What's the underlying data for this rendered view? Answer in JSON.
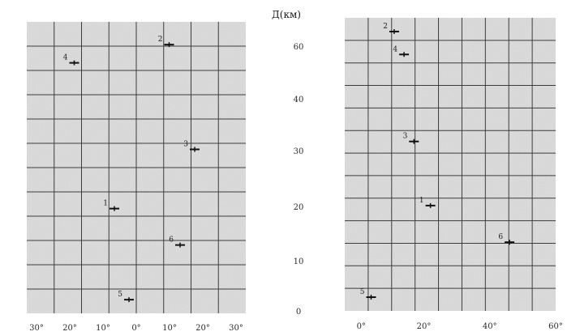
{
  "chart_data": [
    {
      "type": "scatter",
      "title": "",
      "xlabel": "",
      "ylabel": "",
      "x_tick_labels": [
        "30°",
        "20°",
        "10°",
        "0°",
        "10°",
        "20°",
        "30°"
      ],
      "grid": true,
      "points": [
        {
          "label": "2",
          "x": 9,
          "y": 59
        },
        {
          "label": "4",
          "x": -17,
          "y": 55
        },
        {
          "label": "3",
          "x": 16,
          "y": 36
        },
        {
          "label": "1",
          "x": -6,
          "y": 23
        },
        {
          "label": "6",
          "x": 12,
          "y": 15
        },
        {
          "label": "5",
          "x": -2,
          "y": 3
        }
      ]
    },
    {
      "type": "scatter",
      "title": "",
      "xlabel": "",
      "ylabel": "Д(км)",
      "y_tick_labels": [
        "0",
        "10",
        "20",
        "30",
        "40",
        "60"
      ],
      "x_tick_labels": [
        "0°",
        "20°",
        "40°",
        "60°"
      ],
      "grid": true,
      "points": [
        {
          "label": "2",
          "x": 11,
          "y": 61
        },
        {
          "label": "4",
          "x": 14,
          "y": 56
        },
        {
          "label": "3",
          "x": 17,
          "y": 37
        },
        {
          "label": "1",
          "x": 22,
          "y": 23
        },
        {
          "label": "6",
          "x": 46,
          "y": 15
        },
        {
          "label": "5",
          "x": 4,
          "y": 3
        }
      ]
    }
  ],
  "colors": {
    "panel": "#dcdcdc",
    "grid": "#3c3c3c",
    "ink": "#111111"
  }
}
